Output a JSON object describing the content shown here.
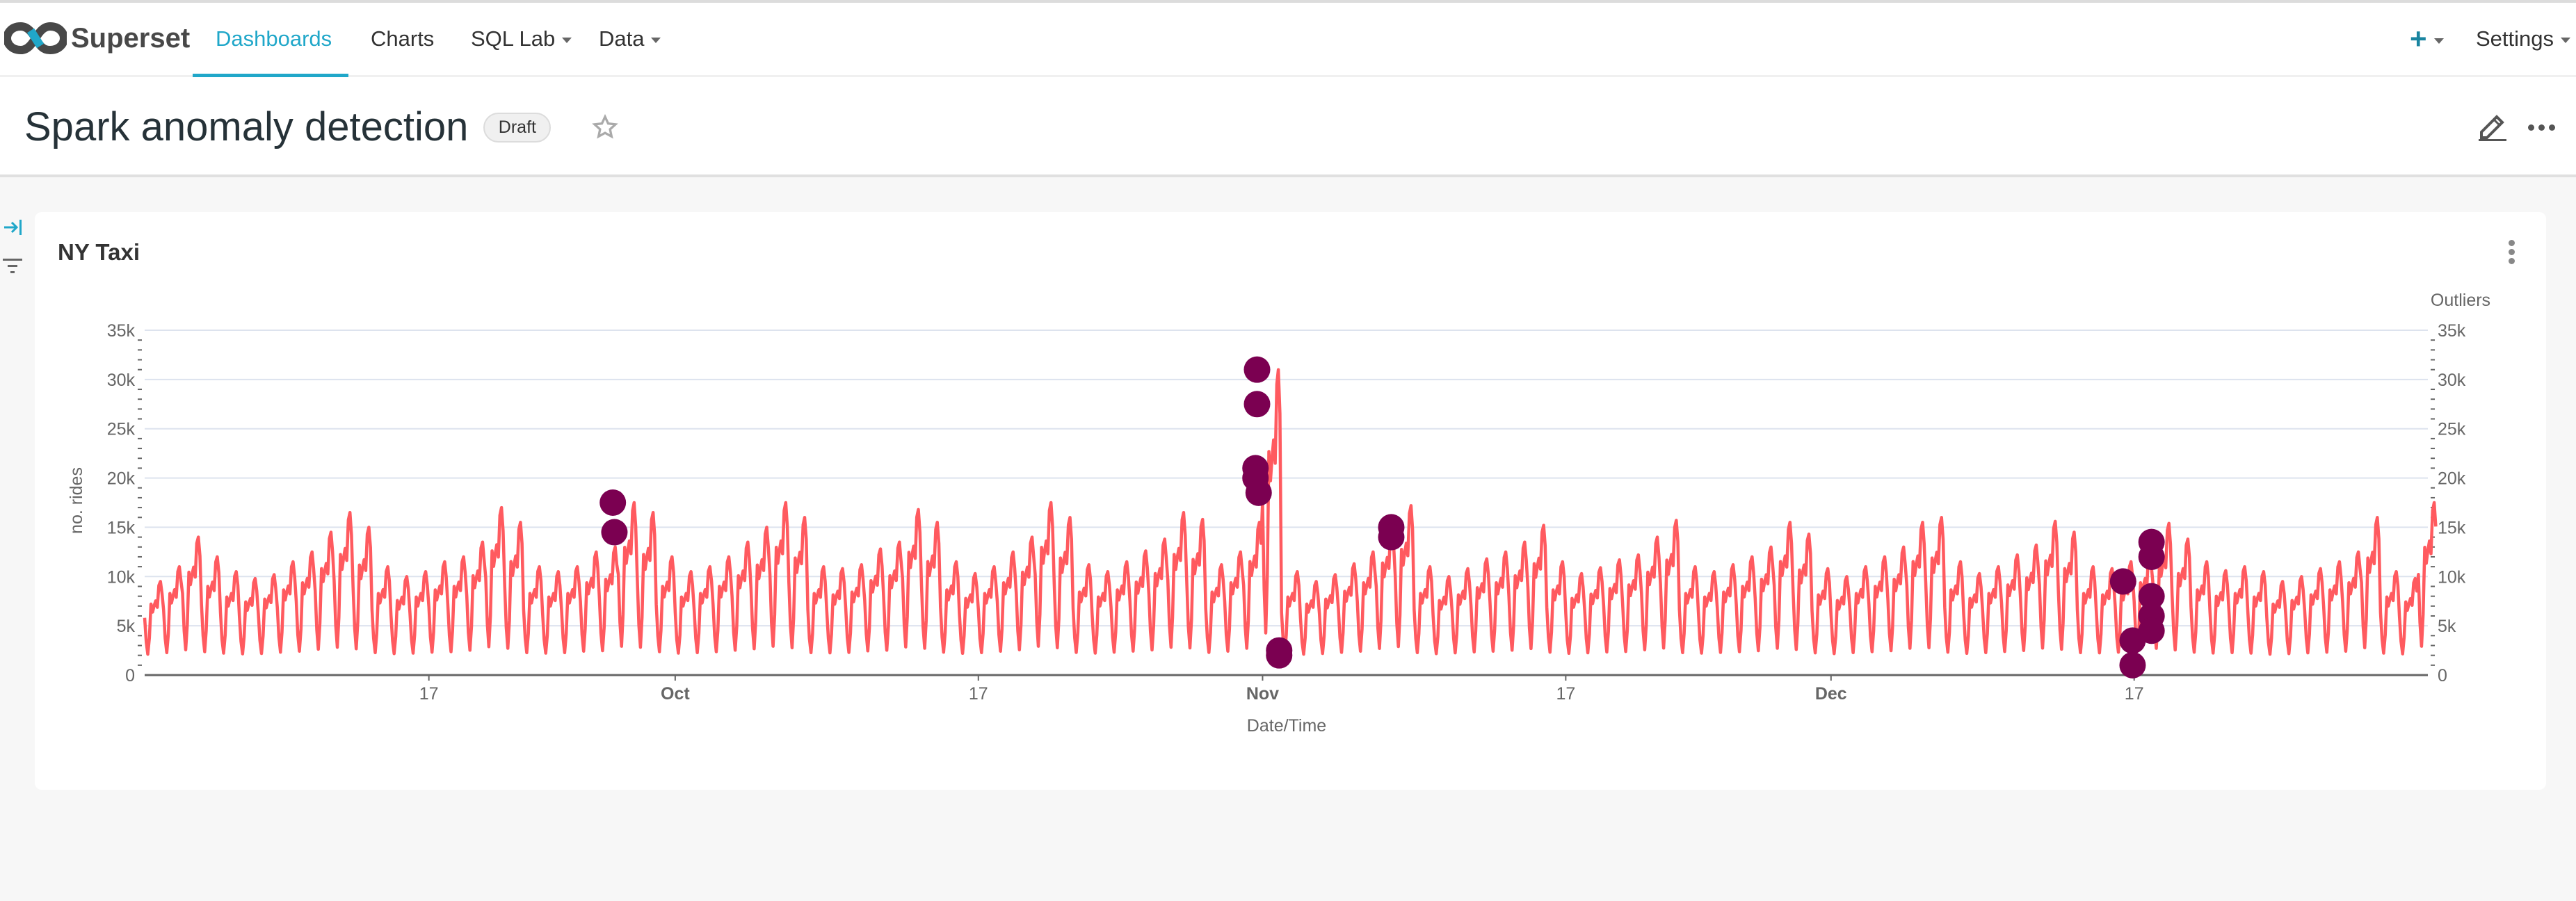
{
  "nav": {
    "brand": "Superset",
    "items": [
      {
        "label": "Dashboards",
        "active": true
      },
      {
        "label": "Charts"
      },
      {
        "label": "SQL Lab",
        "dropdown": true
      },
      {
        "label": "Data",
        "dropdown": true
      }
    ],
    "plus_icon": "plus-icon",
    "settings": "Settings",
    "accent": "#20a7c9"
  },
  "dashboard": {
    "title": "Spark anomaly detection",
    "status": "Draft",
    "favorite_icon": "star-icon",
    "edit_icon": "pencil-icon",
    "more_icon": "ellipsis-icon"
  },
  "sidebar": {
    "expand_icon": "arrow-to-right-icon",
    "filter_icon": "filter-icon"
  },
  "chart": {
    "title": "NY Taxi",
    "menu_icon": "vertical-ellipsis-icon"
  },
  "chart_data": {
    "type": "line",
    "xlabel": "Date/Time",
    "ylabel": "no. rides",
    "y2label": "Outliers",
    "ylim": [
      0,
      35000
    ],
    "y_ticks": [
      "0",
      "5k",
      "10k",
      "15k",
      "20k",
      "25k",
      "30k",
      "35k"
    ],
    "x_range": [
      "Sep 2",
      "Dec 31"
    ],
    "x_ticks": [
      {
        "label": "17",
        "date": "Sep 17",
        "bold": false
      },
      {
        "label": "Oct",
        "date": "Oct 1",
        "bold": true
      },
      {
        "label": "17",
        "date": "Oct 17",
        "bold": false
      },
      {
        "label": "Nov",
        "date": "Nov 1",
        "bold": true
      },
      {
        "label": "17",
        "date": "Nov 17",
        "bold": false
      },
      {
        "label": "Dec",
        "date": "Dec 1",
        "bold": true
      },
      {
        "label": "17",
        "date": "Dec 17",
        "bold": false
      }
    ],
    "grid": true,
    "line_color": "#ff5a5f",
    "outlier_color": "#7b0051",
    "daily_peak": [
      9500,
      11000,
      14000,
      12000,
      10500,
      9800,
      10200,
      11500,
      12500,
      14500,
      16500,
      15000,
      11000,
      10000,
      10500,
      11500,
      12000,
      13500,
      17000,
      15500,
      11000,
      10500,
      11000,
      12500,
      13000,
      17500,
      16500,
      12000,
      10500,
      11000,
      12000,
      13500,
      15000,
      17500,
      16000,
      11000,
      10800,
      11200,
      12800,
      13500,
      16800,
      15500,
      11500,
      10300,
      11000,
      12500,
      14000,
      17500,
      16000,
      11200,
      10500,
      11500,
      12600,
      13800,
      16500,
      15800,
      11200,
      12500,
      15500,
      31000,
      10500,
      9500,
      10200,
      11300,
      12500,
      15300,
      17200,
      11000,
      10000,
      10800,
      11800,
      12500,
      13500,
      15200,
      11500,
      10300,
      10900,
      11700,
      12200,
      14000,
      15700,
      11000,
      10500,
      11200,
      12000,
      13000,
      15500,
      14300,
      10800,
      10000,
      11000,
      12000,
      13000,
      15500,
      16000,
      11500,
      10300,
      11000,
      12200,
      13200,
      15600,
      14500,
      11000,
      10800,
      11500,
      12500,
      15400,
      13800,
      11500,
      10600,
      11000,
      10500,
      9500,
      10000,
      10800,
      11500,
      12500,
      16000,
      10500,
      9800,
      17500
    ],
    "daily_low": 1300,
    "outliers": [
      {
        "date": "Sep 26 17:00",
        "value": 17500
      },
      {
        "date": "Sep 26 19:00",
        "value": 14500
      },
      {
        "date": "Oct 31 15:00",
        "value": 21000
      },
      {
        "date": "Oct 31 15:00",
        "value": 20000
      },
      {
        "date": "Oct 31 17:00",
        "value": 31000
      },
      {
        "date": "Oct 31 17:00",
        "value": 27500
      },
      {
        "date": "Oct 31 19:00",
        "value": 18500
      },
      {
        "date": "Nov 1 21:00",
        "value": 2500
      },
      {
        "date": "Nov 1 21:00",
        "value": 2000
      },
      {
        "date": "Nov 7 19:00",
        "value": 15000
      },
      {
        "date": "Nov 7 19:00",
        "value": 14000
      },
      {
        "date": "Dec 16 10:00",
        "value": 9500
      },
      {
        "date": "Dec 16 22:00",
        "value": 3500
      },
      {
        "date": "Dec 16 22:00",
        "value": 1000
      },
      {
        "date": "Dec 17 22:00",
        "value": 13500
      },
      {
        "date": "Dec 17 22:00",
        "value": 12000
      },
      {
        "date": "Dec 17 22:00",
        "value": 8000
      },
      {
        "date": "Dec 17 22:00",
        "value": 6000
      },
      {
        "date": "Dec 17 22:00",
        "value": 4500
      }
    ]
  }
}
